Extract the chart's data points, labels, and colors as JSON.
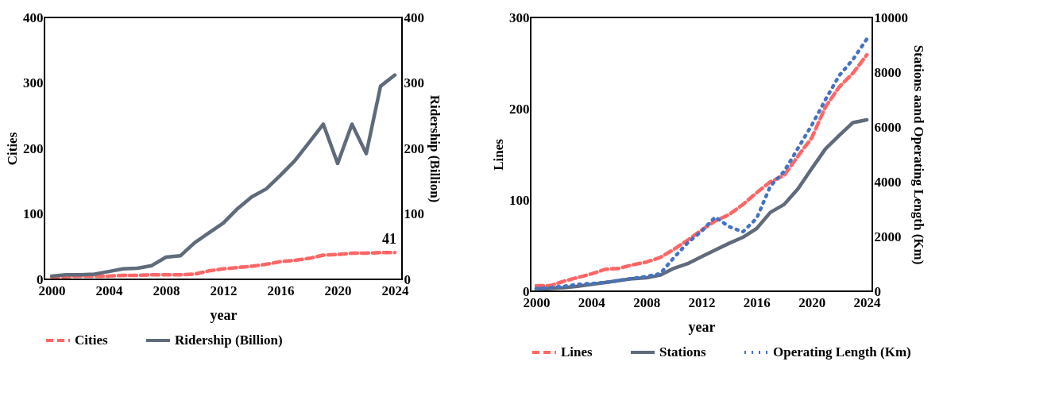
{
  "chart_data": [
    {
      "type": "line",
      "xlabel": "year",
      "ylabel": "Cities",
      "y2label": "Ridership (Billion)",
      "x": [
        2000,
        2001,
        2002,
        2003,
        2004,
        2005,
        2006,
        2007,
        2008,
        2009,
        2010,
        2011,
        2012,
        2013,
        2014,
        2015,
        2016,
        2017,
        2018,
        2019,
        2020,
        2021,
        2022,
        2023,
        2024
      ],
      "xlim": [
        1999.5,
        2024.5
      ],
      "xticks": [
        2000,
        2004,
        2008,
        2012,
        2016,
        2020,
        2024
      ],
      "ylim": [
        0,
        400
      ],
      "yticks": [
        0,
        100,
        200,
        300,
        400
      ],
      "y2lim": [
        0,
        400
      ],
      "y2ticks": [
        0,
        100,
        200,
        300,
        400
      ],
      "legend": "bottom",
      "marker": "none",
      "series": [
        {
          "name": "Cities",
          "color": "#ff6666",
          "line_style": "dashed",
          "values": [
            4,
            4,
            5,
            5,
            5,
            6,
            6,
            7,
            7,
            7,
            8,
            13,
            16,
            18,
            20,
            23,
            27,
            29,
            32,
            37,
            38,
            40,
            40,
            41,
            41
          ],
          "value_labels": [
            null,
            null,
            null,
            null,
            null,
            null,
            null,
            null,
            null,
            null,
            null,
            null,
            null,
            null,
            null,
            null,
            null,
            null,
            null,
            null,
            null,
            null,
            null,
            null,
            "41"
          ]
        },
        {
          "name": "Ridership (Billion)",
          "color": "#5f6b7a",
          "line_style": "solid",
          "axis": "y2",
          "values": [
            5,
            7,
            7,
            8,
            12,
            16,
            17,
            21,
            34,
            36,
            56,
            71,
            86,
            108,
            126,
            138,
            159,
            181,
            209,
            237,
            177,
            237,
            192,
            295,
            312
          ]
        }
      ]
    },
    {
      "type": "line",
      "xlabel": "year",
      "ylabel": "Lines",
      "y2label": "Stations aand Operating Length (Km)",
      "x": [
        2000,
        2001,
        2002,
        2003,
        2004,
        2005,
        2006,
        2007,
        2008,
        2009,
        2010,
        2011,
        2012,
        2013,
        2014,
        2015,
        2016,
        2017,
        2018,
        2019,
        2020,
        2021,
        2022,
        2023,
        2024
      ],
      "xlim": [
        1999.6,
        2024.4
      ],
      "xticks": [
        2000,
        2004,
        2008,
        2012,
        2016,
        2020,
        2024
      ],
      "ylim": [
        0,
        300
      ],
      "yticks": [
        0,
        100,
        200,
        300
      ],
      "y2lim": [
        0,
        10000
      ],
      "y2ticks": [
        0,
        2000,
        4000,
        6000,
        8000,
        10000
      ],
      "legend": "bottom",
      "marker": "none",
      "series": [
        {
          "name": "Lines",
          "color": "#ff6666",
          "line_style": "dashed",
          "values": [
            6,
            6,
            11,
            15,
            19,
            24,
            25,
            29,
            32,
            37,
            46,
            56,
            67,
            77,
            84,
            95,
            108,
            120,
            127,
            148,
            168,
            202,
            224,
            239,
            259
          ]
        },
        {
          "name": "Stations",
          "color": "#5f6b7a",
          "line_style": "solid",
          "axis": "y2",
          "values": [
            80,
            100,
            130,
            180,
            250,
            320,
            390,
            460,
            490,
            590,
            840,
            1010,
            1260,
            1510,
            1750,
            1970,
            2290,
            2880,
            3170,
            3740,
            4480,
            5200,
            5690,
            6160,
            6260
          ]
        },
        {
          "name": "Operating Length (Km)",
          "color": "#4472c4",
          "line_style": "dotted",
          "axis": "y2",
          "values": [
            100,
            130,
            180,
            250,
            280,
            320,
            390,
            470,
            540,
            640,
            1230,
            1770,
            2190,
            2710,
            2360,
            2170,
            2660,
            3840,
            4380,
            5220,
            6060,
            7000,
            7880,
            8470,
            9210
          ]
        }
      ]
    }
  ]
}
